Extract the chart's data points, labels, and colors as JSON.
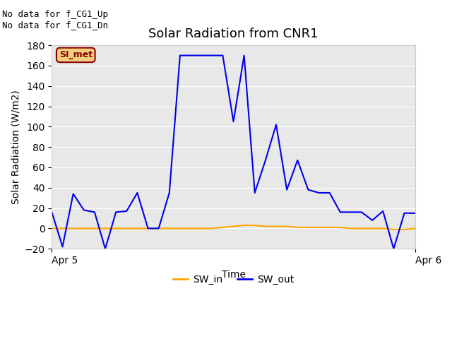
{
  "title": "Solar Radiation from CNR1",
  "xlabel": "Time",
  "ylabel": "Solar Radiation (W/m2)",
  "xlim_labels": [
    "Apr 5",
    "Apr 6"
  ],
  "ylim": [
    -20,
    180
  ],
  "yticks": [
    -20,
    0,
    20,
    40,
    60,
    80,
    100,
    120,
    140,
    160,
    180
  ],
  "plot_bg_color": "#e8e8e8",
  "fig_bg_color": "#ffffff",
  "annotation_text": "No data for f_CG1_Up\nNo data for f_CG1_Dn",
  "legend_box_label": "SI_met",
  "legend_box_facecolor": "#f0d080",
  "legend_box_edgecolor": "#8b0000",
  "legend_box_text_color": "#8b0000",
  "sw_in_color": "#ffa500",
  "sw_out_color": "#0000ee",
  "sw_in_y": [
    0,
    0,
    0,
    0,
    0,
    0,
    0,
    0,
    0,
    0,
    0,
    0,
    0,
    0,
    0,
    0,
    1,
    2,
    3,
    3,
    2,
    2,
    2,
    1,
    1,
    1,
    1,
    1,
    0,
    0,
    0,
    0,
    -1,
    -1,
    0
  ],
  "sw_out_y": [
    16,
    -18,
    34,
    18,
    16,
    -20,
    16,
    17,
    35,
    0,
    0,
    35,
    170,
    170,
    170,
    170,
    170,
    105,
    170,
    35,
    67,
    102,
    38,
    67,
    38,
    35,
    35,
    16,
    16,
    16,
    8,
    17,
    -20,
    15,
    15
  ]
}
